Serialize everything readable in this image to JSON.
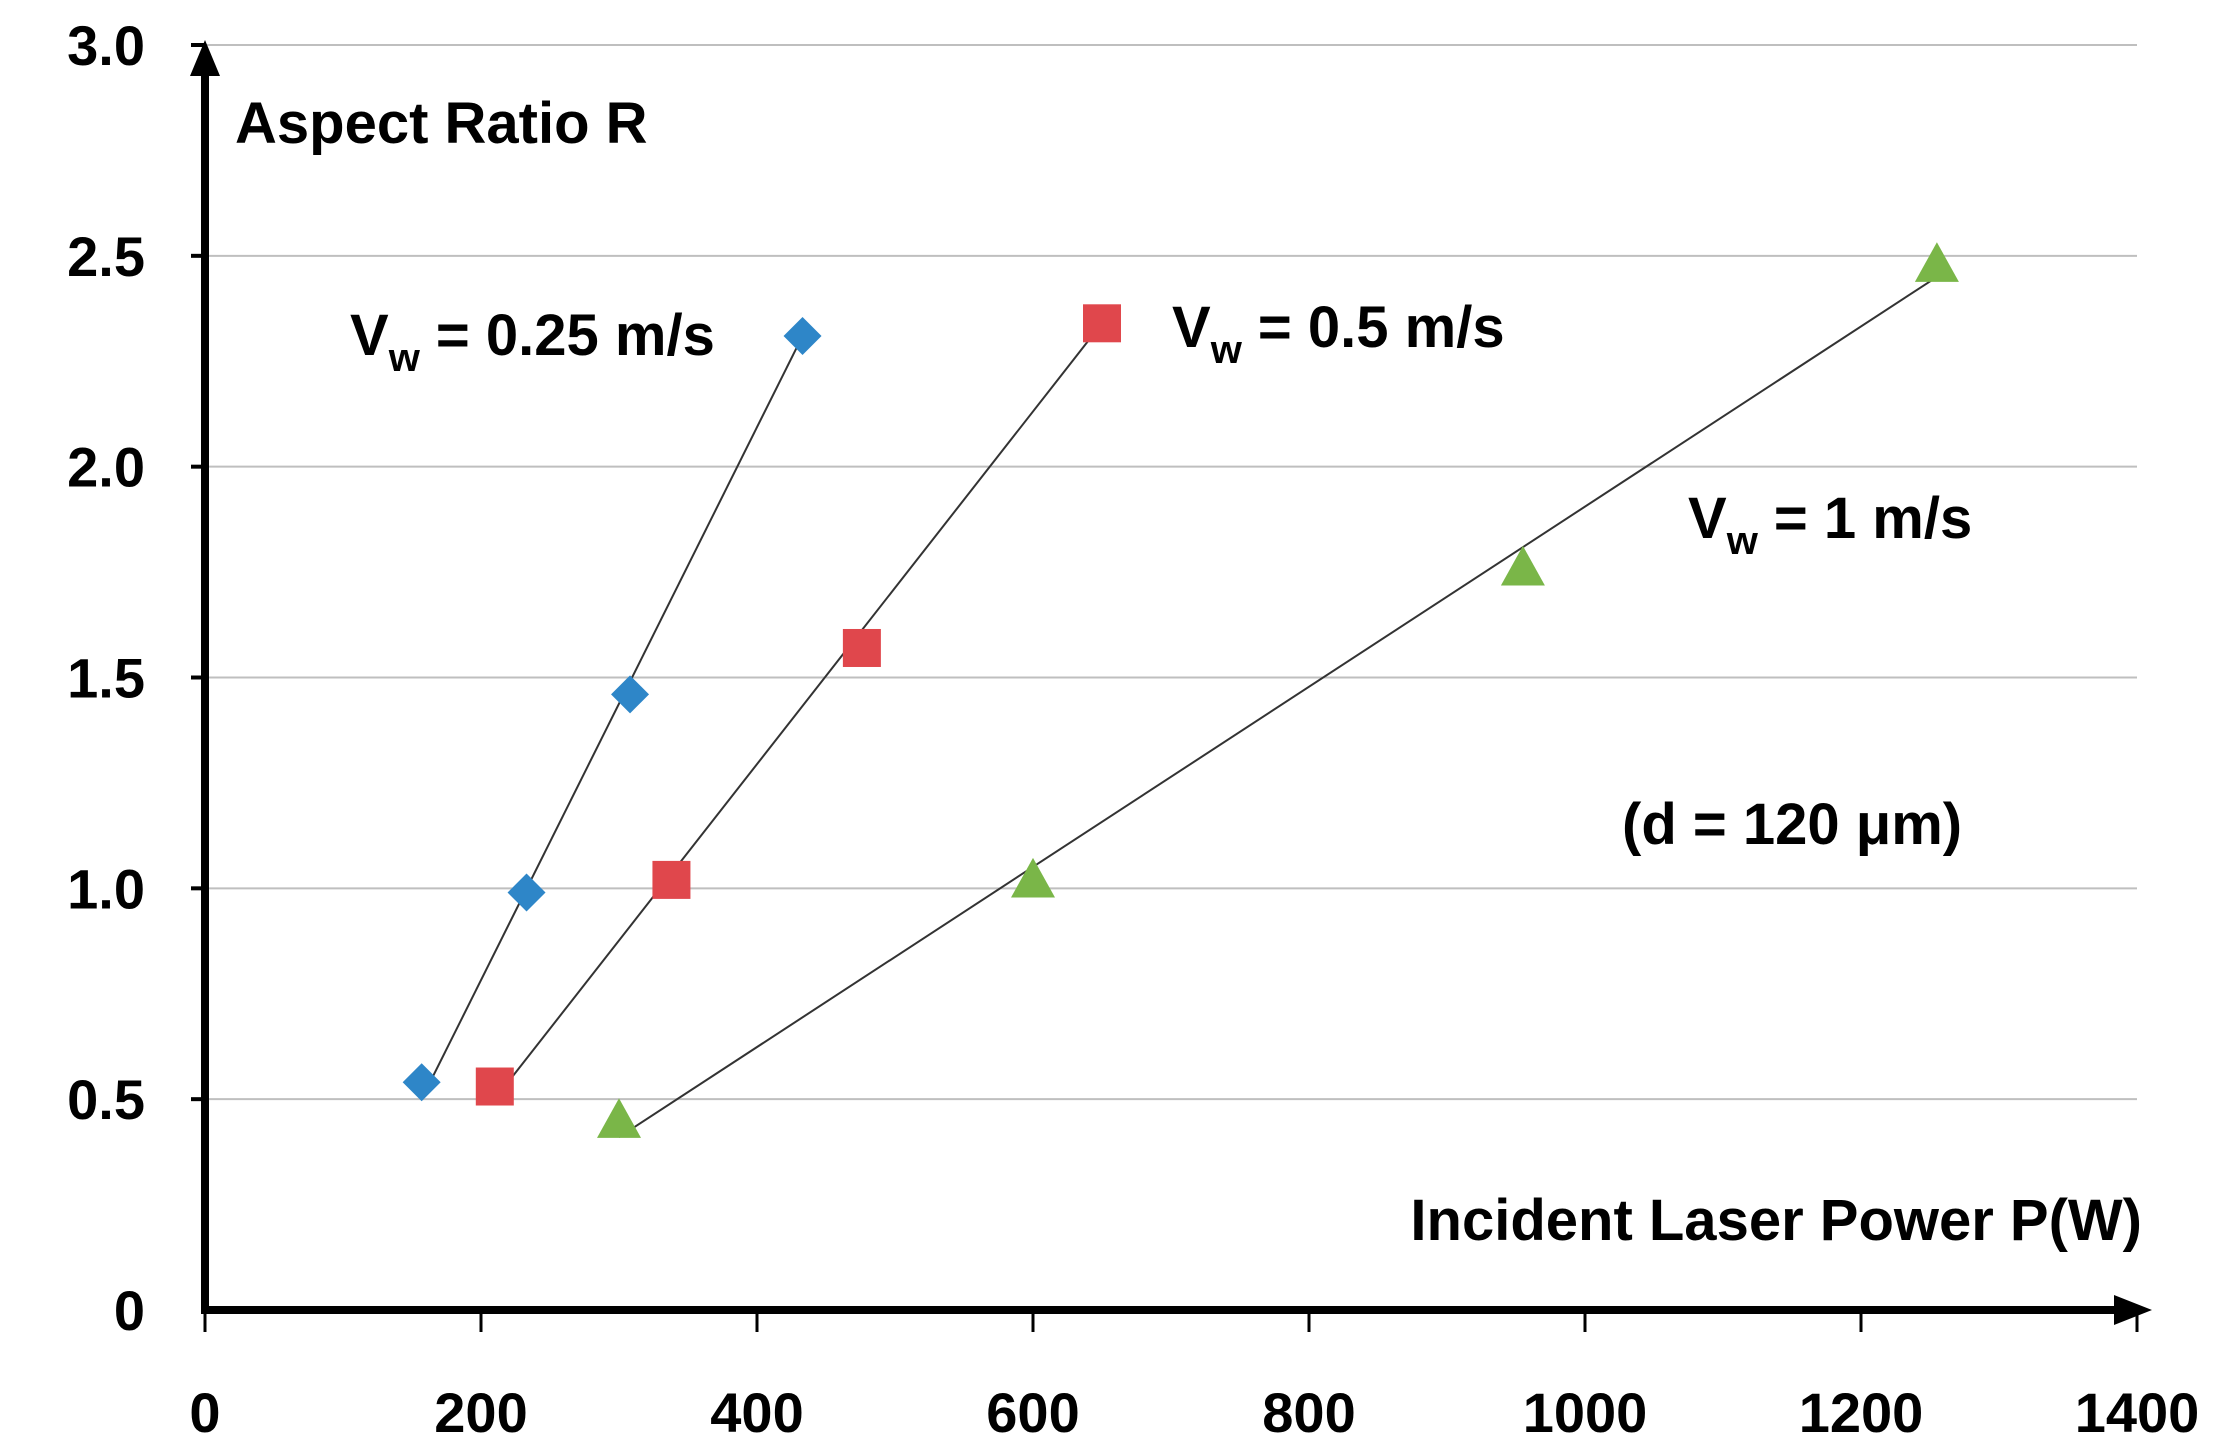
{
  "chart_data": {
    "type": "scatter",
    "title": "",
    "xlabel": "Incident Laser Power P(W)",
    "ylabel": "Aspect Ratio R",
    "xlim": [
      0,
      1400
    ],
    "ylim": [
      0,
      3.0
    ],
    "grid": true,
    "xticks": [
      0,
      200,
      400,
      600,
      800,
      1000,
      1200,
      1400
    ],
    "xtick_labels": [
      "0",
      "200",
      "400",
      "600",
      "800",
      "1000",
      "1200",
      "1400"
    ],
    "yticks": [
      0,
      0.5,
      1.0,
      1.5,
      2.0,
      2.5,
      3.0
    ],
    "ytick_labels": [
      "0",
      "0.5",
      "1.0",
      "1.5",
      "2.0",
      "2.5",
      "3.0"
    ],
    "series": [
      {
        "name": "Vw = 0.25 m/s",
        "label_main": "V",
        "label_sub": "w",
        "label_rest": " = 0.25 m/s",
        "marker": "diamond",
        "color": "#2e86c8",
        "x": [
          157,
          233,
          308,
          433
        ],
        "y": [
          0.54,
          0.99,
          1.46,
          2.31
        ],
        "fit": {
          "x": [
            160,
            433
          ],
          "y": [
            0.52,
            2.31
          ]
        }
      },
      {
        "name": "Vw = 0.5 m/s",
        "label_main": "V",
        "label_sub": "w",
        "label_rest": " = 0.5 m/s",
        "marker": "square",
        "color": "#e0474c",
        "x": [
          210,
          338,
          476,
          650
        ],
        "y": [
          0.53,
          1.02,
          1.57,
          2.34
        ],
        "fit": {
          "x": [
            210,
            650
          ],
          "y": [
            0.5,
            2.34
          ]
        }
      },
      {
        "name": "Vw = 1 m/s",
        "label_main": "V",
        "label_sub": "w",
        "label_rest": " = 1 m/s",
        "marker": "triangle",
        "color": "#7ab648",
        "x": [
          300,
          600,
          955,
          1255
        ],
        "y": [
          0.45,
          1.02,
          1.76,
          2.48
        ],
        "fit": {
          "x": [
            300,
            1255
          ],
          "y": [
            0.41,
            2.45
          ]
        }
      }
    ],
    "annotations": [
      {
        "text": "(d = 120 μm)"
      }
    ]
  }
}
